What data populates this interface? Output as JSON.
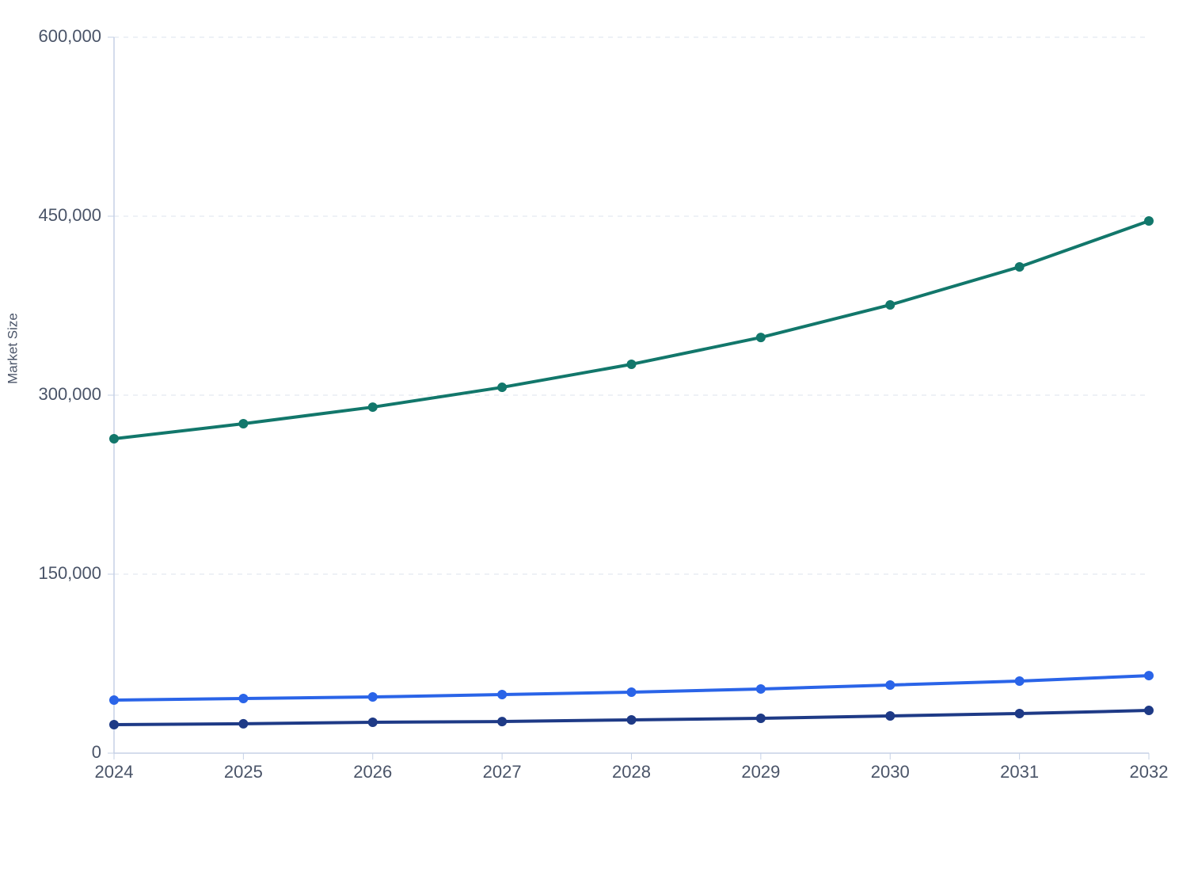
{
  "chart_data": {
    "type": "line",
    "y_label": "Market Size",
    "x": [
      2024,
      2025,
      2026,
      2027,
      2028,
      2029,
      2030,
      2031,
      2032
    ],
    "xlim": [
      2024,
      2032
    ],
    "xticks": [
      2024,
      2025,
      2026,
      2027,
      2028,
      2029,
      2030,
      2031,
      2032
    ],
    "ylim": [
      0,
      600000
    ],
    "yticks": [
      0,
      {
        "value": 150000,
        "label": "150,000"
      },
      {
        "value": 300000,
        "label": "300,000"
      },
      {
        "value": 450000,
        "label": "450,000"
      },
      {
        "value": 600000,
        "label": "600,000"
      }
    ],
    "grid": true,
    "series": [
      {
        "color": "#12776b",
        "values": [
          263500,
          276100,
          290000,
          306600,
          325900,
          348400,
          375700,
          407500,
          446000
        ]
      },
      {
        "color": "#2a64e8",
        "values": [
          44500,
          45800,
          47100,
          49100,
          51100,
          53800,
          57100,
          60400,
          65000
        ]
      },
      {
        "color": "#1e3a86",
        "values": [
          23900,
          24600,
          25900,
          26500,
          27900,
          29200,
          31200,
          33200,
          35800
        ]
      }
    ]
  }
}
